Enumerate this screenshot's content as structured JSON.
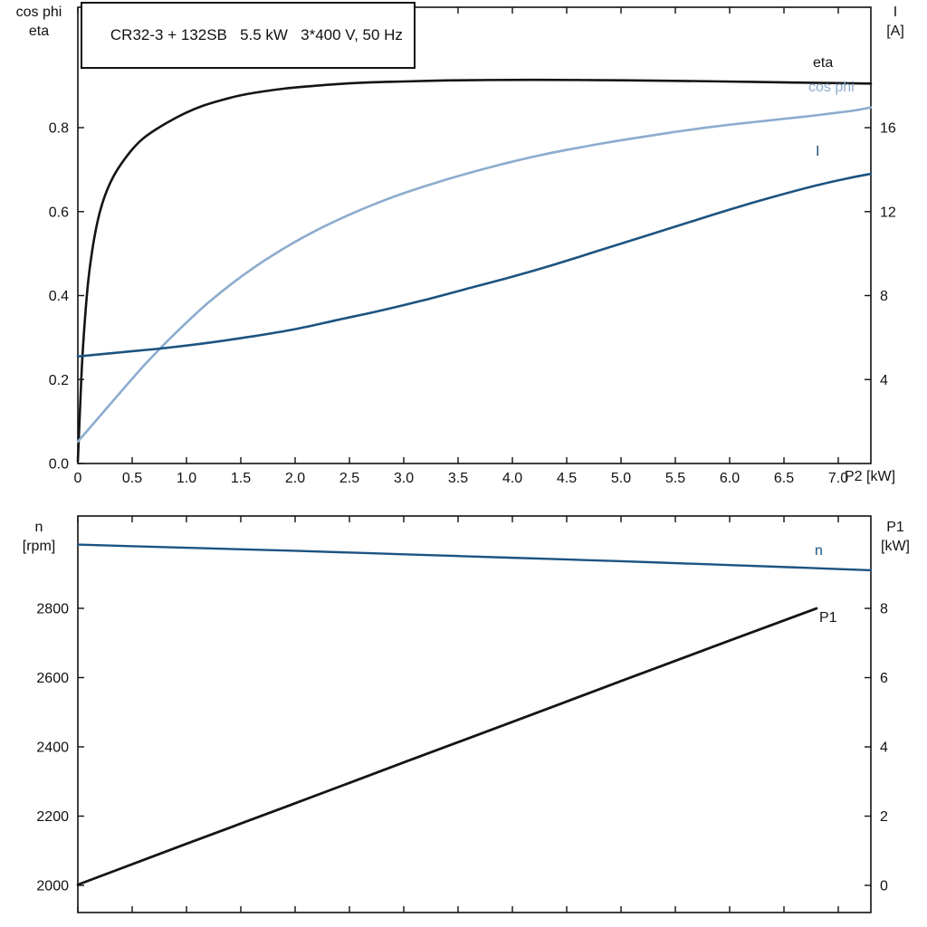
{
  "title_box": {
    "text": "CR32-3 + 132SB   5.5 kW   3*400 V, 50 Hz"
  },
  "colors": {
    "black": "#141414",
    "dark_blue": "#1c5380",
    "light_blue": "#8cacce",
    "axis": "#111111"
  },
  "axis_labels": {
    "top_left_1": "cos phi",
    "top_left_2": "eta",
    "top_right_1": "I",
    "top_right_2": "[A]",
    "bottom_left_1": "n",
    "bottom_left_2": "[rpm]",
    "bottom_right_1": "P1",
    "bottom_right_2": "[kW]",
    "x_unit": "P2 [kW]"
  },
  "curve_labels": {
    "eta": "eta",
    "cos_phi": "cos phi",
    "current": "I",
    "speed": "n",
    "p1": "P1"
  },
  "chart_data": [
    {
      "type": "line",
      "title": "CR32-3 + 132SB   5.5 kW   3*400 V, 50 Hz",
      "xlabel": "P2 [kW]",
      "xlim": [
        0,
        7.3
      ],
      "x_ticks": [
        0,
        0.5,
        1,
        1.5,
        2,
        2.5,
        3,
        3.5,
        4,
        4.5,
        5,
        5.5,
        6,
        6.5,
        7
      ],
      "x_tick_labels": [
        "0",
        "0.5",
        "1.0",
        "1.5",
        "2.0",
        "2.5",
        "3.0",
        "3.5",
        "4.0",
        "4.5",
        "5.0",
        "5.5",
        "6.0",
        "6.5",
        "7.0"
      ],
      "left_axis": {
        "label": "cos phi / eta",
        "lim": [
          0,
          1.0868
        ],
        "ticks": [
          0,
          0.2,
          0.4,
          0.6,
          0.8
        ],
        "tick_labels": [
          "0.0",
          "0.2",
          "0.4",
          "0.6",
          "0.8"
        ]
      },
      "right_axis": {
        "label": "I [A]",
        "lim": [
          0,
          21.737
        ],
        "ticks": [
          4,
          8,
          12,
          16
        ],
        "tick_labels": [
          "4",
          "8",
          "12",
          "16"
        ]
      },
      "grid": false,
      "series": [
        {
          "name": "eta",
          "axis": "left",
          "color": "#141414",
          "width": 2.6,
          "points": [
            [
              0,
              0.005
            ],
            [
              0.02,
              0.13
            ],
            [
              0.04,
              0.245
            ],
            [
              0.07,
              0.36
            ],
            [
              0.1,
              0.445
            ],
            [
              0.14,
              0.52
            ],
            [
              0.18,
              0.575
            ],
            [
              0.22,
              0.615
            ],
            [
              0.27,
              0.652
            ],
            [
              0.33,
              0.685
            ],
            [
              0.4,
              0.714
            ],
            [
              0.5,
              0.748
            ],
            [
              0.6,
              0.774
            ],
            [
              0.72,
              0.796
            ],
            [
              0.85,
              0.816
            ],
            [
              1.0,
              0.836
            ],
            [
              1.15,
              0.852
            ],
            [
              1.3,
              0.864
            ],
            [
              1.5,
              0.877
            ],
            [
              1.7,
              0.886
            ],
            [
              1.9,
              0.893
            ],
            [
              2.1,
              0.898
            ],
            [
              2.4,
              0.904
            ],
            [
              2.7,
              0.908
            ],
            [
              3.0,
              0.91
            ],
            [
              3.4,
              0.9125
            ],
            [
              3.8,
              0.9135
            ],
            [
              4.2,
              0.9138
            ],
            [
              4.6,
              0.9135
            ],
            [
              5.0,
              0.9128
            ],
            [
              5.4,
              0.9118
            ],
            [
              5.8,
              0.9105
            ],
            [
              6.2,
              0.909
            ],
            [
              6.6,
              0.9075
            ],
            [
              7.0,
              0.906
            ],
            [
              7.3,
              0.905
            ]
          ]
        },
        {
          "name": "cos phi",
          "axis": "left",
          "color": "#8cacce",
          "width": 2.6,
          "points": [
            [
              0,
              0.052
            ],
            [
              0.15,
              0.097
            ],
            [
              0.3,
              0.142
            ],
            [
              0.45,
              0.187
            ],
            [
              0.6,
              0.231
            ],
            [
              0.75,
              0.272
            ],
            [
              0.9,
              0.311
            ],
            [
              1.05,
              0.348
            ],
            [
              1.2,
              0.383
            ],
            [
              1.4,
              0.425
            ],
            [
              1.6,
              0.463
            ],
            [
              1.8,
              0.497
            ],
            [
              2.0,
              0.528
            ],
            [
              2.2,
              0.556
            ],
            [
              2.4,
              0.581
            ],
            [
              2.6,
              0.604
            ],
            [
              2.8,
              0.625
            ],
            [
              3.0,
              0.644
            ],
            [
              3.2,
              0.661
            ],
            [
              3.4,
              0.677
            ],
            [
              3.6,
              0.692
            ],
            [
              3.8,
              0.706
            ],
            [
              4.0,
              0.719
            ],
            [
              4.25,
              0.734
            ],
            [
              4.5,
              0.747
            ],
            [
              4.75,
              0.759
            ],
            [
              5.0,
              0.77
            ],
            [
              5.25,
              0.78
            ],
            [
              5.5,
              0.79
            ],
            [
              5.75,
              0.799
            ],
            [
              6.0,
              0.807
            ],
            [
              6.25,
              0.814
            ],
            [
              6.5,
              0.821
            ],
            [
              6.75,
              0.828
            ],
            [
              7.0,
              0.836
            ],
            [
              7.15,
              0.841
            ],
            [
              7.3,
              0.848
            ]
          ]
        },
        {
          "name": "I",
          "axis": "right",
          "color": "#1c5380",
          "width": 2.6,
          "points": [
            [
              0,
              5.1
            ],
            [
              0.4,
              5.3
            ],
            [
              0.8,
              5.5
            ],
            [
              1.2,
              5.75
            ],
            [
              1.6,
              6.05
            ],
            [
              2.0,
              6.4
            ],
            [
              2.4,
              6.85
            ],
            [
              2.8,
              7.3
            ],
            [
              3.2,
              7.8
            ],
            [
              3.6,
              8.35
            ],
            [
              4.0,
              8.9
            ],
            [
              4.4,
              9.5
            ],
            [
              4.8,
              10.15
            ],
            [
              5.2,
              10.8
            ],
            [
              5.6,
              11.45
            ],
            [
              6.0,
              12.1
            ],
            [
              6.4,
              12.7
            ],
            [
              6.8,
              13.25
            ],
            [
              7.1,
              13.6
            ],
            [
              7.3,
              13.8
            ]
          ]
        }
      ]
    },
    {
      "type": "line",
      "title": "",
      "xlabel": "P2 [kW]",
      "xlim": [
        0,
        7.3
      ],
      "x_ticks": [
        0,
        0.5,
        1,
        1.5,
        2,
        2.5,
        3,
        3.5,
        4,
        4.5,
        5,
        5.5,
        6,
        6.5,
        7
      ],
      "x_tick_labels": [],
      "left_axis": {
        "label": "n [rpm]",
        "lim": [
          1921.6,
          3066.6
        ],
        "ticks": [
          2000,
          2200,
          2400,
          2600,
          2800
        ],
        "tick_labels": [
          "2000",
          "2200",
          "2400",
          "2600",
          "2800"
        ]
      },
      "right_axis": {
        "label": "P1 [kW]",
        "lim": [
          -0.784,
          10.668
        ],
        "ticks": [
          0,
          2,
          4,
          6,
          8
        ],
        "tick_labels": [
          "0",
          "2",
          "4",
          "6",
          "8"
        ]
      },
      "grid": false,
      "series": [
        {
          "name": "n",
          "axis": "left",
          "color": "#1c5380",
          "width": 2.4,
          "points": [
            [
              0,
              2984
            ],
            [
              1,
              2975
            ],
            [
              2,
              2966
            ],
            [
              3,
              2956
            ],
            [
              4,
              2946
            ],
            [
              5,
              2936
            ],
            [
              6,
              2925
            ],
            [
              6.7,
              2917
            ],
            [
              7.3,
              2910
            ]
          ]
        },
        {
          "name": "P1",
          "axis": "right",
          "color": "#141414",
          "width": 2.8,
          "points": [
            [
              0,
              0.02
            ],
            [
              1,
              1.2
            ],
            [
              2,
              2.37
            ],
            [
              3,
              3.55
            ],
            [
              4,
              4.72
            ],
            [
              5,
              5.9
            ],
            [
              6,
              7.07
            ],
            [
              6.8,
              8.0
            ]
          ]
        }
      ]
    }
  ]
}
